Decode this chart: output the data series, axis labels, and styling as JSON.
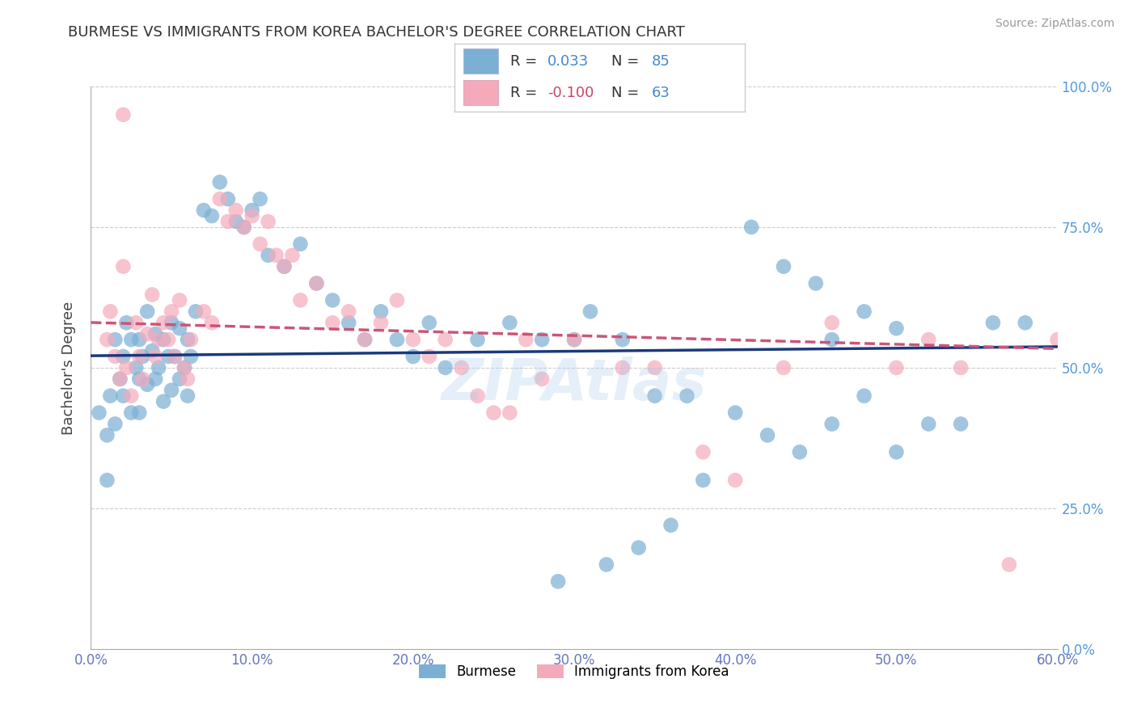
{
  "title": "BURMESE VS IMMIGRANTS FROM KOREA BACHELOR'S DEGREE CORRELATION CHART",
  "source": "Source: ZipAtlas.com",
  "ylabel": "Bachelor's Degree",
  "x_tick_labels": [
    "0.0%",
    "10.0%",
    "20.0%",
    "30.0%",
    "40.0%",
    "50.0%",
    "60.0%"
  ],
  "x_tick_values": [
    0,
    10,
    20,
    30,
    40,
    50,
    60
  ],
  "y_tick_labels": [
    "0.0%",
    "25.0%",
    "50.0%",
    "75.0%",
    "100.0%"
  ],
  "y_tick_values": [
    0,
    25,
    50,
    75,
    100
  ],
  "xlim": [
    0,
    60
  ],
  "ylim": [
    0,
    100
  ],
  "legend_label_blue": "Burmese",
  "legend_label_pink": "Immigrants from Korea",
  "R_blue": 0.033,
  "N_blue": 85,
  "R_pink": -0.1,
  "N_pink": 63,
  "blue_color": "#7BAFD4",
  "pink_color": "#F4AABB",
  "blue_line_color": "#1A3A7A",
  "pink_line_color": "#CC5577",
  "watermark": "ZIPAtlas",
  "blue_x": [
    0.5,
    1.0,
    1.0,
    1.2,
    1.5,
    1.5,
    1.8,
    2.0,
    2.0,
    2.2,
    2.5,
    2.5,
    2.8,
    3.0,
    3.0,
    3.0,
    3.2,
    3.5,
    3.5,
    3.8,
    4.0,
    4.0,
    4.2,
    4.5,
    4.5,
    4.8,
    5.0,
    5.0,
    5.2,
    5.5,
    5.5,
    5.8,
    6.0,
    6.0,
    6.2,
    6.5,
    7.0,
    7.5,
    8.0,
    8.5,
    9.0,
    9.5,
    10.0,
    10.5,
    11.0,
    12.0,
    13.0,
    14.0,
    15.0,
    16.0,
    17.0,
    18.0,
    19.0,
    20.0,
    21.0,
    22.0,
    24.0,
    26.0,
    28.0,
    30.0,
    31.0,
    33.0,
    35.0,
    37.0,
    40.0,
    42.0,
    44.0,
    46.0,
    48.0,
    50.0,
    52.0,
    54.0,
    56.0,
    58.0,
    43.0,
    46.0,
    48.0,
    50.0,
    45.0,
    41.0,
    38.0,
    36.0,
    34.0,
    32.0,
    29.0
  ],
  "blue_y": [
    42,
    38,
    30,
    45,
    40,
    55,
    48,
    52,
    45,
    58,
    55,
    42,
    50,
    55,
    48,
    42,
    52,
    60,
    47,
    53,
    56,
    48,
    50,
    44,
    55,
    52,
    58,
    46,
    52,
    57,
    48,
    50,
    55,
    45,
    52,
    60,
    78,
    77,
    83,
    80,
    76,
    75,
    78,
    80,
    70,
    68,
    72,
    65,
    62,
    58,
    55,
    60,
    55,
    52,
    58,
    50,
    55,
    58,
    55,
    55,
    60,
    55,
    45,
    45,
    42,
    38,
    35,
    40,
    45,
    35,
    40,
    40,
    58,
    58,
    68,
    55,
    60,
    57,
    65,
    75,
    30,
    22,
    18,
    15,
    12
  ],
  "pink_x": [
    1.0,
    1.2,
    1.5,
    1.8,
    2.0,
    2.2,
    2.5,
    2.8,
    3.0,
    3.2,
    3.5,
    3.8,
    4.0,
    4.2,
    4.5,
    4.8,
    5.0,
    5.2,
    5.5,
    5.8,
    6.0,
    6.2,
    7.0,
    7.5,
    8.0,
    8.5,
    9.0,
    9.5,
    10.0,
    10.5,
    11.0,
    11.5,
    12.0,
    12.5,
    13.0,
    14.0,
    15.0,
    16.0,
    17.0,
    18.0,
    19.0,
    20.0,
    21.0,
    22.0,
    23.0,
    24.0,
    25.0,
    26.0,
    27.0,
    28.0,
    30.0,
    33.0,
    35.0,
    38.0,
    40.0,
    43.0,
    46.0,
    50.0,
    52.0,
    54.0,
    57.0,
    60.0,
    2.0
  ],
  "pink_y": [
    55,
    60,
    52,
    48,
    68,
    50,
    45,
    58,
    52,
    48,
    56,
    63,
    52,
    55,
    58,
    55,
    60,
    52,
    62,
    50,
    48,
    55,
    60,
    58,
    80,
    76,
    78,
    75,
    77,
    72,
    76,
    70,
    68,
    70,
    62,
    65,
    58,
    60,
    55,
    58,
    62,
    55,
    52,
    55,
    50,
    45,
    42,
    42,
    55,
    48,
    55,
    50,
    50,
    35,
    30,
    50,
    58,
    50,
    55,
    50,
    15,
    55,
    95
  ]
}
